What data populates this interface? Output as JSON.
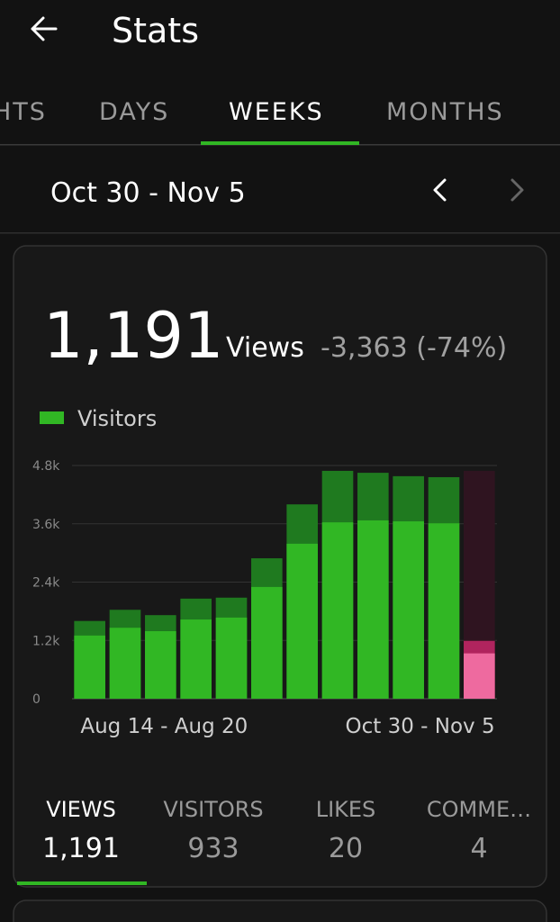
{
  "header": {
    "title": "Stats"
  },
  "tabs": [
    "HTS",
    "DAYS",
    "WEEKS",
    "MONTHS"
  ],
  "period": {
    "label": "Oct 30 - Nov 5"
  },
  "summary": {
    "value": "1,191",
    "unit": "Views",
    "change": "-3,363 (-74%)"
  },
  "chart_data": {
    "type": "bar",
    "categories": [
      "Aug 14 - Aug 20",
      null,
      null,
      null,
      null,
      null,
      null,
      null,
      null,
      null,
      null,
      "Oct 30 - Nov 5"
    ],
    "series": [
      {
        "color": "#1f7a1f",
        "selected_color": "#b0245e",
        "values": [
          1600,
          1830,
          1720,
          2060,
          2080,
          2890,
          4000,
          4690,
          4650,
          4580,
          4560,
          1191
        ]
      },
      {
        "name": "Visitors",
        "color": "#31b724",
        "selected_color": "#ee6a9f",
        "values": [
          1300,
          1460,
          1390,
          1630,
          1670,
          2300,
          3190,
          3630,
          3670,
          3650,
          3610,
          933
        ]
      }
    ],
    "selected_index": 11,
    "ylim": [
      0,
      4800
    ],
    "yticks": [
      0,
      {
        "value": 1200,
        "label": "1.2k"
      },
      {
        "value": 2400,
        "label": "2.4k"
      },
      {
        "value": 3600,
        "label": "3.6k"
      },
      {
        "value": 4800,
        "label": "4.8k"
      }
    ],
    "grid": true
  },
  "stats": [
    {
      "label": "VIEWS",
      "value": "1,191"
    },
    {
      "label": "VISITORS",
      "value": "933"
    },
    {
      "label": "LIKES",
      "value": "20"
    },
    {
      "label": "COMME…",
      "value": "4"
    }
  ]
}
